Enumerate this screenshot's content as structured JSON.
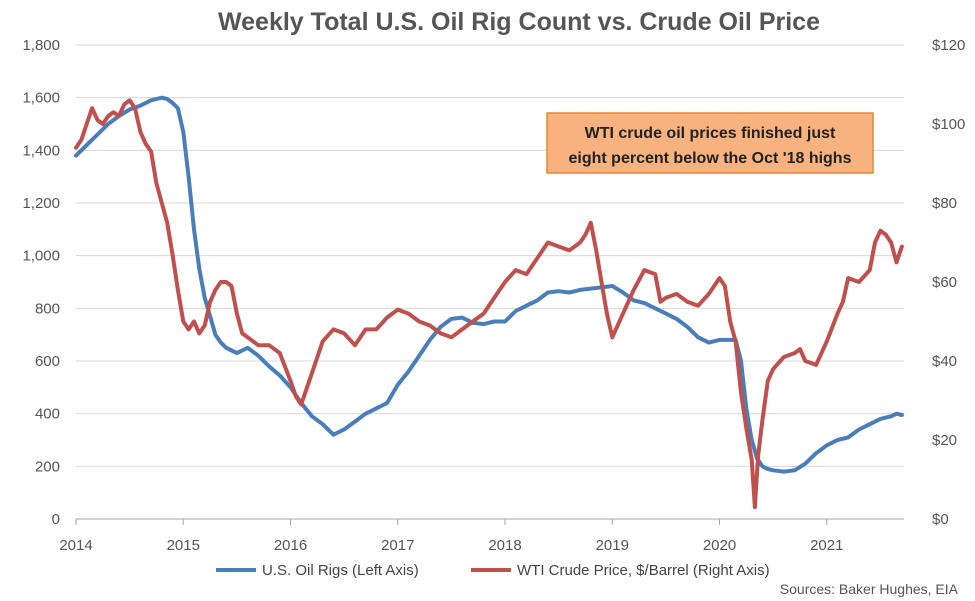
{
  "chart_data": {
    "type": "line",
    "title": "Weekly Total U.S. Oil Rig Count vs. Crude Oil Price",
    "x_ticks": [
      "2014",
      "2015",
      "2016",
      "2017",
      "2018",
      "2019",
      "2020",
      "2021"
    ],
    "x_range": [
      2014.0,
      2021.72
    ],
    "y_left": {
      "range": [
        0,
        1800
      ],
      "ticks": [
        "0",
        "200",
        "400",
        "600",
        "800",
        "1,000",
        "1,200",
        "1,400",
        "1,600",
        "1,800"
      ]
    },
    "y_right": {
      "range": [
        0,
        120
      ],
      "ticks": [
        "$0",
        "$20",
        "$40",
        "$60",
        "$80",
        "$100",
        "$120"
      ]
    },
    "grid": "horizontal",
    "legend_position": "bottom",
    "series": [
      {
        "name": "U.S. Oil Rigs (Left Axis)",
        "axis": "left",
        "color": "#4a7ebb",
        "x": [
          2014.0,
          2014.05,
          2014.1,
          2014.2,
          2014.3,
          2014.4,
          2014.5,
          2014.6,
          2014.7,
          2014.8,
          2014.85,
          2014.9,
          2014.95,
          2015.0,
          2015.05,
          2015.1,
          2015.15,
          2015.2,
          2015.25,
          2015.3,
          2015.35,
          2015.4,
          2015.5,
          2015.6,
          2015.7,
          2015.8,
          2015.9,
          2016.0,
          2016.1,
          2016.2,
          2016.3,
          2016.4,
          2016.5,
          2016.6,
          2016.7,
          2016.8,
          2016.9,
          2017.0,
          2017.1,
          2017.2,
          2017.3,
          2017.4,
          2017.5,
          2017.6,
          2017.7,
          2017.8,
          2017.9,
          2018.0,
          2018.1,
          2018.2,
          2018.3,
          2018.4,
          2018.5,
          2018.6,
          2018.7,
          2018.8,
          2018.9,
          2019.0,
          2019.1,
          2019.2,
          2019.3,
          2019.4,
          2019.5,
          2019.6,
          2019.7,
          2019.8,
          2019.9,
          2020.0,
          2020.1,
          2020.15,
          2020.2,
          2020.25,
          2020.3,
          2020.35,
          2020.4,
          2020.45,
          2020.5,
          2020.6,
          2020.7,
          2020.8,
          2020.9,
          2021.0,
          2021.1,
          2021.2,
          2021.3,
          2021.4,
          2021.5,
          2021.6,
          2021.65,
          2021.7
        ],
        "values": [
          1380,
          1400,
          1420,
          1460,
          1500,
          1530,
          1555,
          1570,
          1590,
          1600,
          1595,
          1580,
          1560,
          1470,
          1300,
          1100,
          950,
          840,
          770,
          700,
          670,
          650,
          630,
          650,
          620,
          580,
          545,
          500,
          440,
          390,
          360,
          320,
          340,
          370,
          400,
          420,
          440,
          510,
          560,
          620,
          680,
          730,
          760,
          765,
          745,
          740,
          750,
          750,
          790,
          810,
          830,
          860,
          865,
          860,
          870,
          875,
          880,
          885,
          860,
          830,
          820,
          800,
          780,
          760,
          730,
          690,
          670,
          680,
          680,
          680,
          600,
          420,
          300,
          230,
          200,
          190,
          185,
          180,
          185,
          210,
          250,
          280,
          300,
          310,
          340,
          360,
          380,
          390,
          400,
          395
        ]
      },
      {
        "name": "WTI Crude Price, $/Barrel (Right Axis)",
        "axis": "right",
        "color": "#c0504d",
        "x": [
          2014.0,
          2014.05,
          2014.1,
          2014.15,
          2014.2,
          2014.25,
          2014.3,
          2014.35,
          2014.4,
          2014.45,
          2014.5,
          2014.55,
          2014.6,
          2014.65,
          2014.7,
          2014.75,
          2014.8,
          2014.85,
          2014.9,
          2014.95,
          2015.0,
          2015.05,
          2015.1,
          2015.15,
          2015.2,
          2015.25,
          2015.3,
          2015.35,
          2015.4,
          2015.45,
          2015.5,
          2015.55,
          2015.6,
          2015.65,
          2015.7,
          2015.8,
          2015.9,
          2016.0,
          2016.05,
          2016.1,
          2016.15,
          2016.2,
          2016.3,
          2016.4,
          2016.5,
          2016.6,
          2016.7,
          2016.8,
          2016.9,
          2017.0,
          2017.1,
          2017.2,
          2017.3,
          2017.4,
          2017.5,
          2017.6,
          2017.7,
          2017.8,
          2017.9,
          2018.0,
          2018.1,
          2018.2,
          2018.3,
          2018.4,
          2018.5,
          2018.6,
          2018.7,
          2018.75,
          2018.8,
          2018.85,
          2018.9,
          2018.95,
          2019.0,
          2019.1,
          2019.2,
          2019.3,
          2019.4,
          2019.45,
          2019.5,
          2019.6,
          2019.7,
          2019.8,
          2019.9,
          2020.0,
          2020.05,
          2020.1,
          2020.15,
          2020.2,
          2020.25,
          2020.3,
          2020.33,
          2020.36,
          2020.4,
          2020.45,
          2020.5,
          2020.6,
          2020.7,
          2020.75,
          2020.8,
          2020.9,
          2021.0,
          2021.1,
          2021.15,
          2021.2,
          2021.3,
          2021.4,
          2021.45,
          2021.5,
          2021.55,
          2021.6,
          2021.65,
          2021.7
        ],
        "values": [
          94,
          96,
          100,
          104,
          101,
          100,
          102,
          103,
          102,
          105,
          106,
          104,
          98,
          95,
          93,
          85,
          80,
          75,
          67,
          58,
          50,
          48,
          50,
          47,
          49,
          55,
          58,
          60,
          60,
          59,
          52,
          47,
          46,
          45,
          44,
          44,
          42,
          35,
          31,
          29,
          33,
          37,
          45,
          48,
          47,
          44,
          48,
          48,
          51,
          53,
          52,
          50,
          49,
          47,
          46,
          48,
          50,
          52,
          56,
          60,
          63,
          62,
          66,
          70,
          69,
          68,
          70,
          72,
          75,
          68,
          60,
          52,
          46,
          52,
          58,
          63,
          62,
          55,
          56,
          57,
          55,
          54,
          57,
          61,
          59,
          50,
          45,
          32,
          23,
          15,
          3,
          16,
          25,
          35,
          38,
          41,
          42,
          43,
          40,
          39,
          45,
          52,
          55,
          61,
          60,
          63,
          70,
          73,
          72,
          70,
          65,
          69
        ]
      }
    ],
    "annotation": {
      "lines": [
        "WTI crude oil prices finished just",
        "eight percent below the Oct '18 highs"
      ]
    },
    "source": "Sources: Baker Hughes, EIA"
  }
}
